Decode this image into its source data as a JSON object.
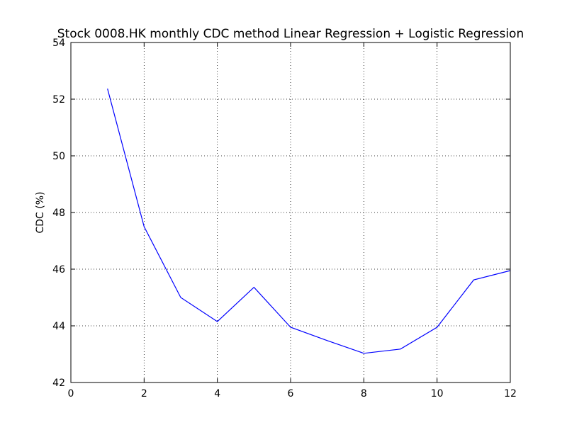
{
  "chart_data": {
    "type": "line",
    "title": "Stock 0008.HK monthly CDC method Linear Regression + Logistic Regression",
    "xlabel": "",
    "ylabel": "CDC (%)",
    "xlim": [
      0,
      12
    ],
    "ylim": [
      42,
      54
    ],
    "xticks": [
      0,
      2,
      4,
      6,
      8,
      10,
      12
    ],
    "yticks": [
      42,
      44,
      46,
      48,
      50,
      52,
      54
    ],
    "xtick_labels": [
      "0",
      "2",
      "4",
      "6",
      "8",
      "10",
      "12"
    ],
    "ytick_labels": [
      "42",
      "44",
      "46",
      "48",
      "50",
      "52",
      "54"
    ],
    "grid": true,
    "series": [
      {
        "color": "#0000ff",
        "x": [
          1,
          2,
          3,
          4,
          5,
          6,
          7,
          8,
          9,
          10,
          11,
          12
        ],
        "y": [
          52.37,
          47.5,
          45.0,
          44.15,
          45.36,
          43.95,
          43.48,
          43.03,
          43.18,
          43.95,
          45.62,
          45.95
        ]
      }
    ]
  }
}
